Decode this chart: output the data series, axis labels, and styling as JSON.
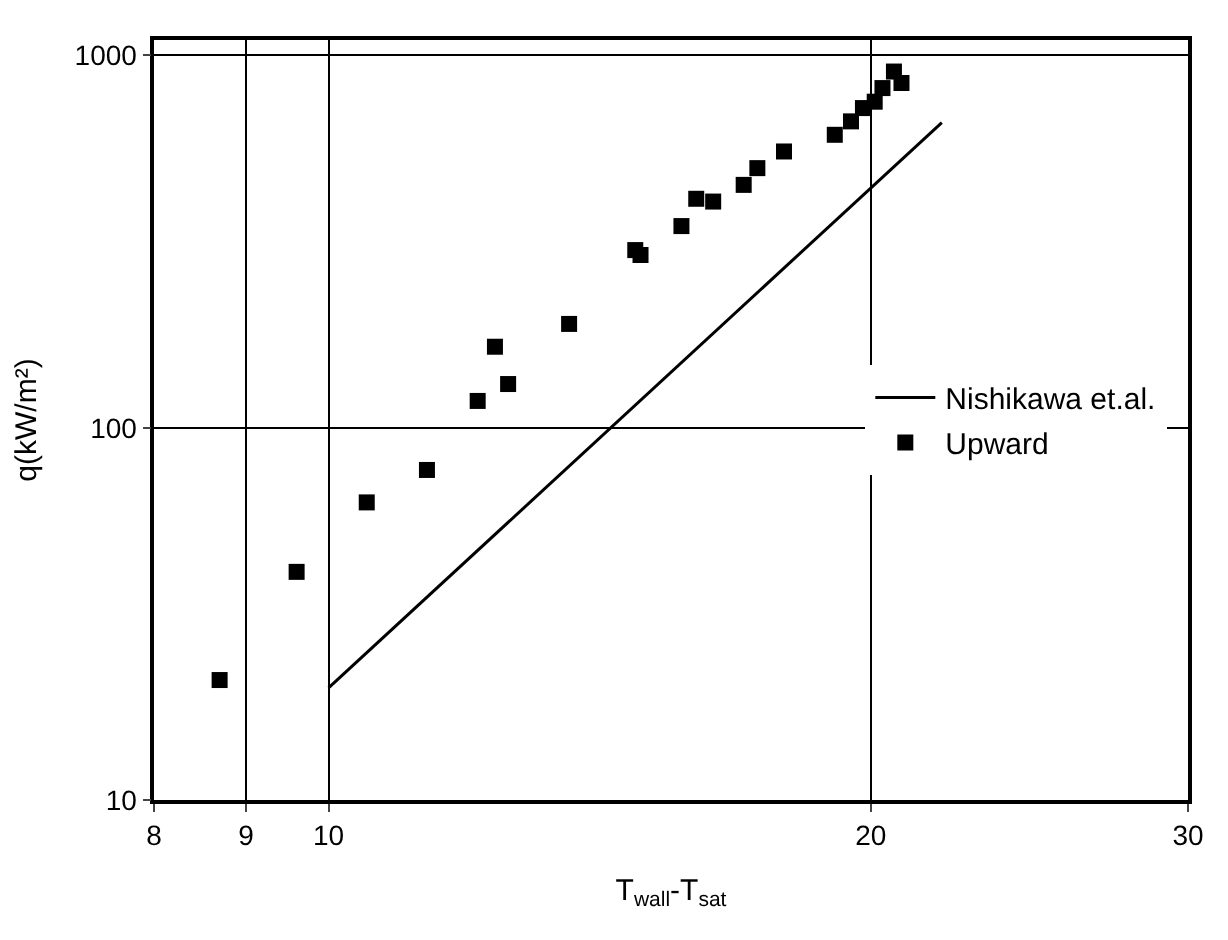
{
  "chart_data": {
    "type": "scatter",
    "xlabel": "T$_{wall}$-T$_{sat}$",
    "ylabel": "q(kW/m²)",
    "log": "xy",
    "xlim": [
      8,
      30
    ],
    "xticks": [
      8,
      9,
      10,
      20,
      30
    ],
    "ylim": [
      10,
      1100
    ],
    "yticks": [
      10,
      100,
      1000
    ],
    "grid": true,
    "legend": "right",
    "series": [
      {
        "name": "Nishikawa et.al.",
        "type": "line",
        "marker": "none",
        "color": "#000000",
        "x": [
          10,
          21.9
        ],
        "values": [
          20,
          660
        ]
      },
      {
        "name": "Upward",
        "marker": "square",
        "color": "#000000",
        "x": [
          8.7,
          9.6,
          10.5,
          11.34,
          12.1,
          12.37,
          12.58,
          13.6,
          14.8,
          14.9,
          15.7,
          16.0,
          16.35,
          17.0,
          17.3,
          17.9,
          19.1,
          19.5,
          19.8,
          20.1,
          20.3,
          20.6,
          20.8
        ],
        "values": [
          21,
          41,
          63,
          77,
          118,
          165,
          131,
          190,
          300,
          291,
          348,
          412,
          405,
          449,
          498,
          552,
          612,
          665,
          722,
          751,
          817,
          905,
          843
        ]
      }
    ]
  }
}
